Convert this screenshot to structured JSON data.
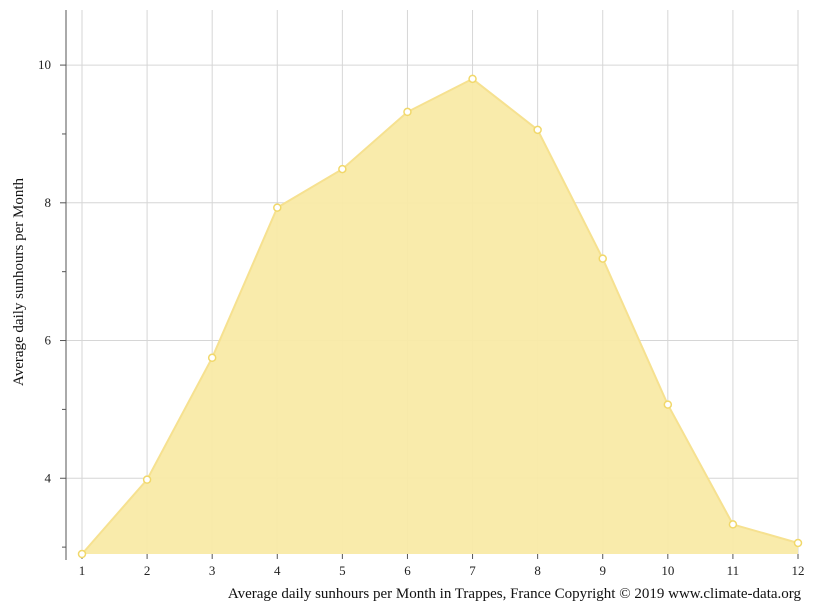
{
  "chart_data": {
    "type": "area",
    "x": [
      1,
      2,
      3,
      4,
      5,
      6,
      7,
      8,
      9,
      10,
      11,
      12
    ],
    "y": [
      2.9,
      3.98,
      5.75,
      7.93,
      8.49,
      9.32,
      9.8,
      9.06,
      7.19,
      5.07,
      3.33,
      3.06
    ],
    "xlabel": "",
    "ylabel": "Average daily sunhours per Month",
    "caption": "Average daily sunhours per Month in Trappes, France Copyright © 2019 www.climate-data.org",
    "x_ticks": [
      "1",
      "2",
      "3",
      "4",
      "5",
      "6",
      "7",
      "8",
      "9",
      "10",
      "11",
      "12"
    ],
    "y_ticks": [
      "4",
      "6",
      "8",
      "10"
    ],
    "xlim": [
      1,
      12
    ],
    "ylim": [
      2.9,
      10.8
    ],
    "grid": true,
    "colors": {
      "fill": "#f9eaa7",
      "line": "#f6e190",
      "marker_fill": "#ffffff",
      "marker_stroke": "#f1d86a",
      "grid": "#d6d6d6",
      "axis": "#555555"
    }
  }
}
